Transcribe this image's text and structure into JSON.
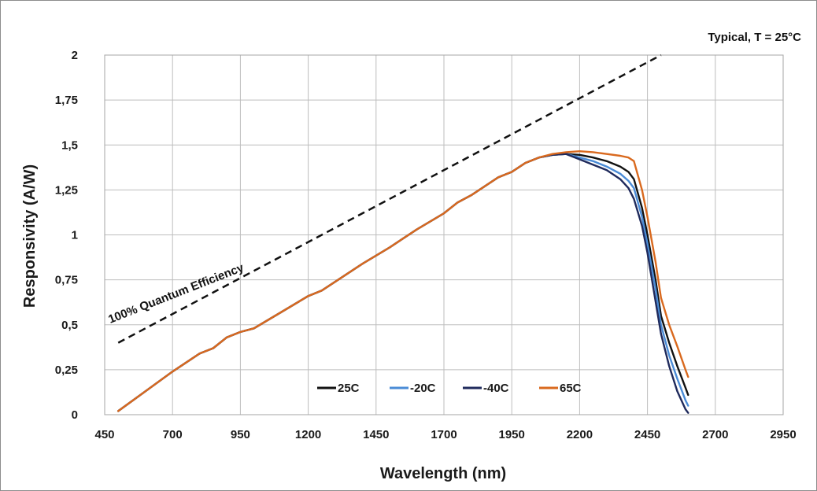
{
  "chart_data": {
    "type": "line",
    "title": "",
    "xlabel": "Wavelength (nm)",
    "ylabel": "Responsivity (A/W)",
    "xlim": [
      450,
      2950
    ],
    "ylim": [
      0,
      2
    ],
    "x_ticks": [
      "450",
      "700",
      "950",
      "1200",
      "1450",
      "1700",
      "1950",
      "2200",
      "2450",
      "2700",
      "2950"
    ],
    "y_ticks": [
      "0",
      "0,25",
      "0,5",
      "0,75",
      "1",
      "1,25",
      "1,5",
      "1,75",
      "2"
    ],
    "grid": true,
    "legend_position": "bottom-center",
    "annotations": {
      "typical": "Typical, T = 25°C",
      "quantum": "100% Quantum Efficiency"
    },
    "reference_line": {
      "label": "100% Quantum Efficiency",
      "style": "dashed",
      "color": "#111111",
      "x": [
        500,
        2500
      ],
      "y": [
        0.4,
        2.0
      ]
    },
    "series": [
      {
        "name": "25C",
        "color": "#111111",
        "x": [
          500,
          600,
          700,
          800,
          850,
          900,
          950,
          1000,
          1100,
          1200,
          1250,
          1300,
          1400,
          1500,
          1600,
          1700,
          1750,
          1800,
          1900,
          1950,
          2000,
          2050,
          2100,
          2150,
          2200,
          2250,
          2300,
          2350,
          2380,
          2400,
          2430,
          2450,
          2480,
          2500,
          2530,
          2560,
          2590,
          2600
        ],
        "y": [
          0.02,
          0.13,
          0.24,
          0.34,
          0.37,
          0.43,
          0.46,
          0.48,
          0.57,
          0.66,
          0.69,
          0.74,
          0.84,
          0.93,
          1.03,
          1.12,
          1.18,
          1.22,
          1.32,
          1.35,
          1.4,
          1.43,
          1.445,
          1.45,
          1.445,
          1.43,
          1.41,
          1.38,
          1.35,
          1.31,
          1.15,
          1.0,
          0.75,
          0.55,
          0.4,
          0.27,
          0.15,
          0.11
        ]
      },
      {
        "name": "-20C",
        "color": "#4a8bd6",
        "x": [
          500,
          600,
          700,
          800,
          850,
          900,
          950,
          1000,
          1100,
          1200,
          1250,
          1300,
          1400,
          1500,
          1600,
          1700,
          1750,
          1800,
          1900,
          1950,
          2000,
          2050,
          2100,
          2150,
          2200,
          2250,
          2300,
          2350,
          2380,
          2400,
          2430,
          2450,
          2480,
          2500,
          2530,
          2560,
          2590,
          2600
        ],
        "y": [
          0.02,
          0.13,
          0.24,
          0.34,
          0.37,
          0.43,
          0.46,
          0.48,
          0.57,
          0.66,
          0.69,
          0.74,
          0.84,
          0.93,
          1.03,
          1.12,
          1.18,
          1.22,
          1.32,
          1.35,
          1.4,
          1.43,
          1.445,
          1.45,
          1.43,
          1.41,
          1.38,
          1.34,
          1.3,
          1.26,
          1.1,
          0.95,
          0.7,
          0.5,
          0.33,
          0.2,
          0.08,
          0.05
        ]
      },
      {
        "name": "-40C",
        "color": "#1f2a5c",
        "x": [
          500,
          600,
          700,
          800,
          850,
          900,
          950,
          1000,
          1100,
          1200,
          1250,
          1300,
          1400,
          1500,
          1600,
          1700,
          1750,
          1800,
          1900,
          1950,
          2000,
          2050,
          2100,
          2150,
          2200,
          2250,
          2300,
          2350,
          2380,
          2400,
          2430,
          2450,
          2480,
          2500,
          2530,
          2560,
          2590,
          2600
        ],
        "y": [
          0.02,
          0.13,
          0.24,
          0.34,
          0.37,
          0.43,
          0.46,
          0.48,
          0.57,
          0.66,
          0.69,
          0.74,
          0.84,
          0.93,
          1.03,
          1.12,
          1.18,
          1.22,
          1.32,
          1.35,
          1.4,
          1.43,
          1.445,
          1.45,
          1.42,
          1.39,
          1.36,
          1.31,
          1.26,
          1.2,
          1.05,
          0.9,
          0.63,
          0.45,
          0.27,
          0.13,
          0.03,
          0.01
        ]
      },
      {
        "name": "65C",
        "color": "#d9691e",
        "x": [
          500,
          600,
          700,
          800,
          850,
          900,
          950,
          1000,
          1100,
          1200,
          1250,
          1300,
          1400,
          1500,
          1600,
          1700,
          1750,
          1800,
          1900,
          1950,
          2000,
          2050,
          2100,
          2150,
          2200,
          2250,
          2300,
          2350,
          2380,
          2400,
          2430,
          2450,
          2480,
          2500,
          2530,
          2560,
          2590,
          2600
        ],
        "y": [
          0.02,
          0.13,
          0.24,
          0.34,
          0.37,
          0.43,
          0.46,
          0.48,
          0.57,
          0.66,
          0.69,
          0.74,
          0.84,
          0.93,
          1.03,
          1.12,
          1.18,
          1.22,
          1.32,
          1.35,
          1.4,
          1.43,
          1.45,
          1.46,
          1.465,
          1.46,
          1.45,
          1.44,
          1.43,
          1.41,
          1.25,
          1.1,
          0.85,
          0.65,
          0.5,
          0.38,
          0.25,
          0.21
        ]
      }
    ]
  }
}
